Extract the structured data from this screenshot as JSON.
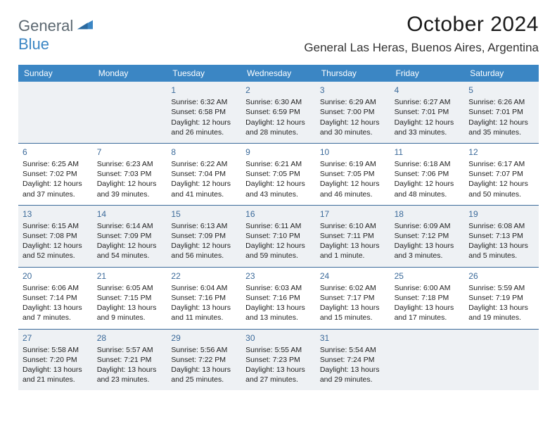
{
  "brand": {
    "name_a": "General",
    "name_b": "Blue"
  },
  "title": "October 2024",
  "location": "General Las Heras, Buenos Aires, Argentina",
  "colors": {
    "header_bar": "#3b86c4",
    "week_divider": "#3b6a9a",
    "shade_bg": "#eef1f4",
    "text": "#222222",
    "day_num": "#3b6a9a"
  },
  "dow": [
    "Sunday",
    "Monday",
    "Tuesday",
    "Wednesday",
    "Thursday",
    "Friday",
    "Saturday"
  ],
  "weeks": [
    [
      {
        "n": "",
        "sr": "",
        "ss": "",
        "dl": ""
      },
      {
        "n": "",
        "sr": "",
        "ss": "",
        "dl": ""
      },
      {
        "n": "1",
        "sr": "6:32 AM",
        "ss": "6:58 PM",
        "dl": "12 hours and 26 minutes."
      },
      {
        "n": "2",
        "sr": "6:30 AM",
        "ss": "6:59 PM",
        "dl": "12 hours and 28 minutes."
      },
      {
        "n": "3",
        "sr": "6:29 AM",
        "ss": "7:00 PM",
        "dl": "12 hours and 30 minutes."
      },
      {
        "n": "4",
        "sr": "6:27 AM",
        "ss": "7:01 PM",
        "dl": "12 hours and 33 minutes."
      },
      {
        "n": "5",
        "sr": "6:26 AM",
        "ss": "7:01 PM",
        "dl": "12 hours and 35 minutes."
      }
    ],
    [
      {
        "n": "6",
        "sr": "6:25 AM",
        "ss": "7:02 PM",
        "dl": "12 hours and 37 minutes."
      },
      {
        "n": "7",
        "sr": "6:23 AM",
        "ss": "7:03 PM",
        "dl": "12 hours and 39 minutes."
      },
      {
        "n": "8",
        "sr": "6:22 AM",
        "ss": "7:04 PM",
        "dl": "12 hours and 41 minutes."
      },
      {
        "n": "9",
        "sr": "6:21 AM",
        "ss": "7:05 PM",
        "dl": "12 hours and 43 minutes."
      },
      {
        "n": "10",
        "sr": "6:19 AM",
        "ss": "7:05 PM",
        "dl": "12 hours and 46 minutes."
      },
      {
        "n": "11",
        "sr": "6:18 AM",
        "ss": "7:06 PM",
        "dl": "12 hours and 48 minutes."
      },
      {
        "n": "12",
        "sr": "6:17 AM",
        "ss": "7:07 PM",
        "dl": "12 hours and 50 minutes."
      }
    ],
    [
      {
        "n": "13",
        "sr": "6:15 AM",
        "ss": "7:08 PM",
        "dl": "12 hours and 52 minutes."
      },
      {
        "n": "14",
        "sr": "6:14 AM",
        "ss": "7:09 PM",
        "dl": "12 hours and 54 minutes."
      },
      {
        "n": "15",
        "sr": "6:13 AM",
        "ss": "7:09 PM",
        "dl": "12 hours and 56 minutes."
      },
      {
        "n": "16",
        "sr": "6:11 AM",
        "ss": "7:10 PM",
        "dl": "12 hours and 59 minutes."
      },
      {
        "n": "17",
        "sr": "6:10 AM",
        "ss": "7:11 PM",
        "dl": "13 hours and 1 minute."
      },
      {
        "n": "18",
        "sr": "6:09 AM",
        "ss": "7:12 PM",
        "dl": "13 hours and 3 minutes."
      },
      {
        "n": "19",
        "sr": "6:08 AM",
        "ss": "7:13 PM",
        "dl": "13 hours and 5 minutes."
      }
    ],
    [
      {
        "n": "20",
        "sr": "6:06 AM",
        "ss": "7:14 PM",
        "dl": "13 hours and 7 minutes."
      },
      {
        "n": "21",
        "sr": "6:05 AM",
        "ss": "7:15 PM",
        "dl": "13 hours and 9 minutes."
      },
      {
        "n": "22",
        "sr": "6:04 AM",
        "ss": "7:16 PM",
        "dl": "13 hours and 11 minutes."
      },
      {
        "n": "23",
        "sr": "6:03 AM",
        "ss": "7:16 PM",
        "dl": "13 hours and 13 minutes."
      },
      {
        "n": "24",
        "sr": "6:02 AM",
        "ss": "7:17 PM",
        "dl": "13 hours and 15 minutes."
      },
      {
        "n": "25",
        "sr": "6:00 AM",
        "ss": "7:18 PM",
        "dl": "13 hours and 17 minutes."
      },
      {
        "n": "26",
        "sr": "5:59 AM",
        "ss": "7:19 PM",
        "dl": "13 hours and 19 minutes."
      }
    ],
    [
      {
        "n": "27",
        "sr": "5:58 AM",
        "ss": "7:20 PM",
        "dl": "13 hours and 21 minutes."
      },
      {
        "n": "28",
        "sr": "5:57 AM",
        "ss": "7:21 PM",
        "dl": "13 hours and 23 minutes."
      },
      {
        "n": "29",
        "sr": "5:56 AM",
        "ss": "7:22 PM",
        "dl": "13 hours and 25 minutes."
      },
      {
        "n": "30",
        "sr": "5:55 AM",
        "ss": "7:23 PM",
        "dl": "13 hours and 27 minutes."
      },
      {
        "n": "31",
        "sr": "5:54 AM",
        "ss": "7:24 PM",
        "dl": "13 hours and 29 minutes."
      },
      {
        "n": "",
        "sr": "",
        "ss": "",
        "dl": ""
      },
      {
        "n": "",
        "sr": "",
        "ss": "",
        "dl": ""
      }
    ]
  ],
  "labels": {
    "sunrise": "Sunrise:",
    "sunset": "Sunset:",
    "daylight": "Daylight:"
  },
  "shaded_weeks": [
    0,
    2,
    4
  ]
}
